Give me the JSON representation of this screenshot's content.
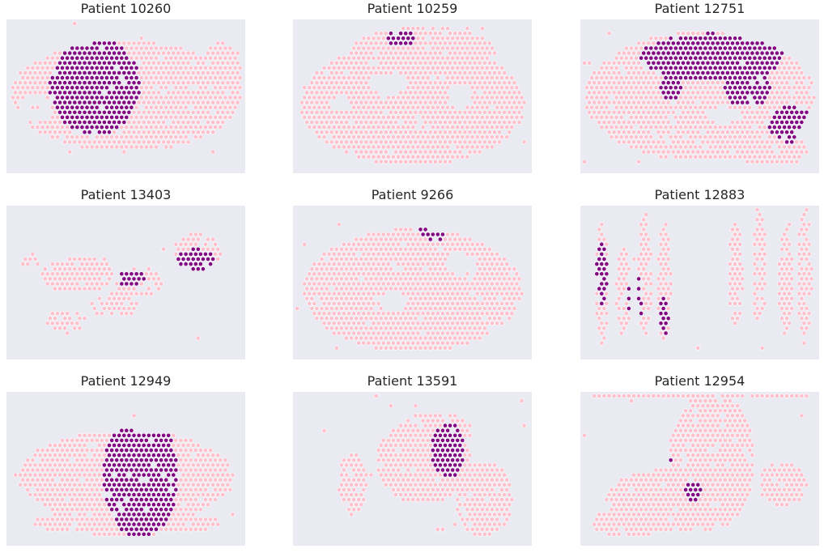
{
  "colors": {
    "background": "#eaeaf2",
    "tissue": "#ffc0cb",
    "tumor": "#800080",
    "edge": "#ffffff"
  },
  "chart_data": [
    {
      "type": "scatter",
      "title": "Patient 10260",
      "shape": "blob",
      "tissue": [
        [
          0.5,
          0.5,
          0.48,
          0.36
        ],
        [
          0.27,
          0.7,
          0.1,
          0.12
        ],
        [
          0.9,
          0.4,
          0.1,
          0.25
        ]
      ],
      "holes": [
        [
          0.12,
          0.58,
          0.07,
          0.09
        ]
      ],
      "tumor": [
        [
          0.37,
          0.44,
          0.19,
          0.32
        ]
      ]
    },
    {
      "type": "scatter",
      "title": "Patient 10259",
      "shape": "blob",
      "tissue": [
        [
          0.5,
          0.55,
          0.47,
          0.4
        ],
        [
          0.55,
          0.2,
          0.3,
          0.15
        ]
      ],
      "holes": [
        [
          0.4,
          0.42,
          0.08,
          0.07
        ],
        [
          0.7,
          0.5,
          0.05,
          0.08
        ],
        [
          0.2,
          0.55,
          0.04,
          0.05
        ]
      ],
      "tumor": [
        [
          0.45,
          0.12,
          0.06,
          0.06
        ]
      ]
    },
    {
      "type": "scatter",
      "title": "Patient 12751",
      "shape": "blob",
      "tissue": [
        [
          0.5,
          0.5,
          0.48,
          0.42
        ],
        [
          0.8,
          0.85,
          0.15,
          0.12
        ]
      ],
      "holes": [
        [
          0.6,
          0.62,
          0.08,
          0.05
        ]
      ],
      "tumor": [
        [
          0.55,
          0.25,
          0.3,
          0.16
        ],
        [
          0.7,
          0.45,
          0.1,
          0.12
        ],
        [
          0.38,
          0.45,
          0.05,
          0.08
        ],
        [
          0.88,
          0.68,
          0.09,
          0.12
        ]
      ]
    },
    {
      "type": "scatter",
      "title": "Patient 13403",
      "shape": "scatter",
      "tissue": [
        [
          0.3,
          0.45,
          0.15,
          0.12
        ],
        [
          0.55,
          0.5,
          0.1,
          0.1
        ],
        [
          0.8,
          0.3,
          0.1,
          0.12
        ],
        [
          0.1,
          0.35,
          0.04,
          0.05
        ],
        [
          0.25,
          0.75,
          0.08,
          0.08
        ],
        [
          0.45,
          0.65,
          0.1,
          0.08
        ]
      ],
      "holes": [],
      "tumor": [
        [
          0.79,
          0.36,
          0.09,
          0.08
        ],
        [
          0.52,
          0.47,
          0.06,
          0.05
        ],
        [
          0.39,
          0.86,
          0.06,
          0.07
        ]
      ]
    },
    {
      "type": "scatter",
      "title": "Patient 9266",
      "shape": "blob",
      "tissue": [
        [
          0.5,
          0.55,
          0.46,
          0.4
        ]
      ],
      "holes": [
        [
          0.7,
          0.38,
          0.07,
          0.07
        ],
        [
          0.42,
          0.62,
          0.06,
          0.06
        ]
      ],
      "tumor": [
        [
          0.59,
          0.15,
          0.06,
          0.08
        ]
      ]
    },
    {
      "type": "scatter",
      "title": "Patient 12883",
      "shape": "columns",
      "tissue": [
        [
          0.09,
          0.5,
          0.03,
          0.4
        ],
        [
          0.18,
          0.55,
          0.03,
          0.3
        ],
        [
          0.27,
          0.45,
          0.03,
          0.4
        ],
        [
          0.35,
          0.5,
          0.03,
          0.4
        ],
        [
          0.65,
          0.45,
          0.03,
          0.35
        ],
        [
          0.75,
          0.4,
          0.03,
          0.4
        ],
        [
          0.86,
          0.5,
          0.03,
          0.35
        ],
        [
          0.94,
          0.45,
          0.03,
          0.45
        ]
      ],
      "holes": [],
      "tumor": [
        [
          0.09,
          0.45,
          0.025,
          0.2
        ],
        [
          0.23,
          0.6,
          0.03,
          0.2
        ],
        [
          0.35,
          0.72,
          0.02,
          0.12
        ]
      ]
    },
    {
      "type": "scatter",
      "title": "Patient 12949",
      "shape": "blob",
      "tissue": [
        [
          0.5,
          0.55,
          0.45,
          0.3
        ],
        [
          0.5,
          0.85,
          0.4,
          0.08
        ]
      ],
      "holes": [],
      "tumor": [
        [
          0.56,
          0.55,
          0.16,
          0.4
        ]
      ]
    },
    {
      "type": "scatter",
      "title": "Patient 13591",
      "shape": "blob",
      "tissue": [
        [
          0.55,
          0.45,
          0.2,
          0.28
        ],
        [
          0.8,
          0.7,
          0.12,
          0.25
        ],
        [
          0.25,
          0.6,
          0.06,
          0.2
        ],
        [
          0.6,
          0.25,
          0.15,
          0.12
        ]
      ],
      "holes": [],
      "tumor": [
        [
          0.65,
          0.38,
          0.07,
          0.18
        ]
      ]
    },
    {
      "type": "scatter",
      "title": "Patient 12954",
      "shape": "blob",
      "tissue": [
        [
          0.55,
          0.45,
          0.18,
          0.45
        ],
        [
          0.4,
          0.7,
          0.3,
          0.2
        ],
        [
          0.2,
          0.85,
          0.15,
          0.1
        ],
        [
          0.85,
          0.6,
          0.1,
          0.15
        ],
        [
          0.5,
          0.03,
          0.46,
          0.02
        ]
      ],
      "holes": [],
      "tumor": [
        [
          0.47,
          0.64,
          0.04,
          0.07
        ],
        [
          0.38,
          0.45,
          0.01,
          0.02
        ]
      ]
    }
  ]
}
